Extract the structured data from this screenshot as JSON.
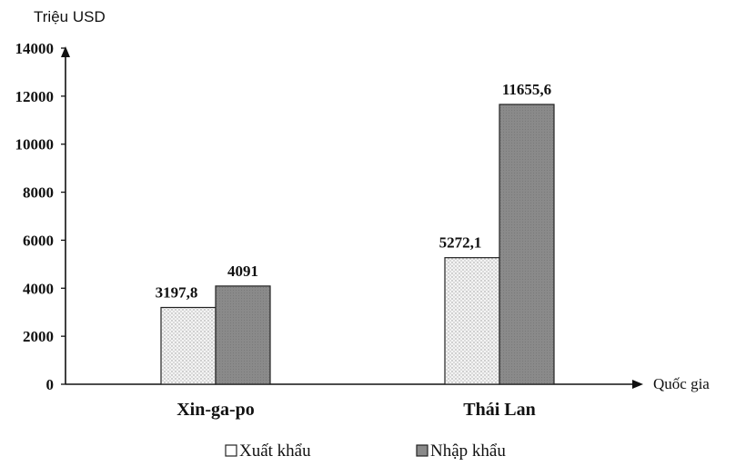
{
  "chart_data": {
    "type": "bar",
    "ylabel": "Triệu USD",
    "xlabel": "Quốc gia",
    "categories": [
      "Xin-ga-po",
      "Thái Lan"
    ],
    "series": [
      {
        "name": "Xuất khẩu",
        "values": [
          3197.8,
          5272.1
        ],
        "labels": [
          "3197,8",
          "5272,1"
        ],
        "color": "#f2f2f2",
        "pattern": "dotted"
      },
      {
        "name": "Nhập khẩu",
        "values": [
          4091,
          11655.6
        ],
        "labels": [
          "4091",
          "11655,6"
        ],
        "color": "#8c8c8c",
        "pattern": "solid"
      }
    ],
    "ylim": [
      0,
      14000
    ],
    "yticks": [
      0,
      2000,
      4000,
      6000,
      8000,
      10000,
      12000,
      14000
    ],
    "grid": false,
    "legend": "bottom-center"
  }
}
